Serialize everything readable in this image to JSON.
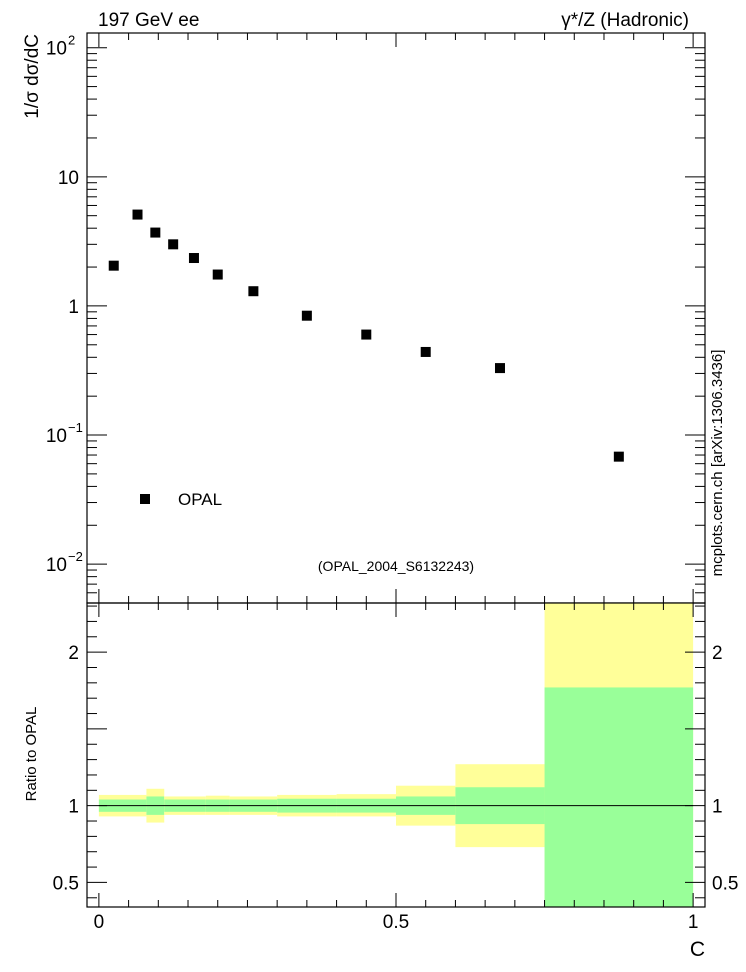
{
  "header": {
    "left": "197 GeV ee",
    "right": "γ*/Z (Hadronic)"
  },
  "watermark": "mcplots.cern.ch [arXiv:1306.3436]",
  "analysis_id": "(OPAL_2004_S6132243)",
  "colors": {
    "band_outer": "#ffff99",
    "band_inner": "#99ff99",
    "marker": "#000000",
    "analysis_text": "#999999"
  },
  "chart_data": [
    {
      "type": "scatter",
      "ylabel": "1/σ dσ/dC",
      "yscale": "log",
      "xlim": [
        -0.02,
        1.02
      ],
      "ylim": [
        0.005,
        130
      ],
      "y_ticks": [
        {
          "value": 0.01,
          "mantissa": "10",
          "exp": "−2"
        },
        {
          "value": 0.1,
          "mantissa": "10",
          "exp": "−1"
        },
        {
          "value": 1,
          "label": "1"
        },
        {
          "value": 10,
          "label": "10"
        },
        {
          "value": 100,
          "mantissa": "10",
          "exp": "2"
        }
      ],
      "legend": {
        "placement": "bottom-left",
        "entries": [
          "OPAL"
        ]
      },
      "series": [
        {
          "name": "OPAL",
          "points": [
            {
              "x": 0.025,
              "y": 2.05
            },
            {
              "x": 0.065,
              "y": 5.1
            },
            {
              "x": 0.095,
              "y": 3.7
            },
            {
              "x": 0.125,
              "y": 3.0
            },
            {
              "x": 0.16,
              "y": 2.35
            },
            {
              "x": 0.2,
              "y": 1.75
            },
            {
              "x": 0.26,
              "y": 1.3
            },
            {
              "x": 0.35,
              "y": 0.84
            },
            {
              "x": 0.45,
              "y": 0.6
            },
            {
              "x": 0.55,
              "y": 0.44
            },
            {
              "x": 0.675,
              "y": 0.33
            },
            {
              "x": 0.875,
              "y": 0.068
            }
          ]
        }
      ]
    },
    {
      "type": "area",
      "xlabel": "C",
      "ylabel": "Ratio to OPAL",
      "xlim": [
        -0.02,
        1.02
      ],
      "ylim": [
        0.34,
        2.32
      ],
      "x_ticks": [
        {
          "value": 0,
          "label": "0"
        },
        {
          "value": 0.5,
          "label": "0.5"
        },
        {
          "value": 1,
          "label": "1"
        }
      ],
      "y_ticks": [
        {
          "value": 0.5,
          "label": "0.5"
        },
        {
          "value": 1,
          "label": "1"
        },
        {
          "value": 2,
          "label": "2"
        }
      ],
      "reference_line": 1,
      "bins": [
        {
          "x0": 0.0,
          "x1": 0.08,
          "inner": [
            0.96,
            1.04
          ],
          "outer": [
            0.93,
            1.07
          ]
        },
        {
          "x0": 0.08,
          "x1": 0.11,
          "inner": [
            0.94,
            1.06
          ],
          "outer": [
            0.89,
            1.11
          ]
        },
        {
          "x0": 0.11,
          "x1": 0.18,
          "inner": [
            0.96,
            1.04
          ],
          "outer": [
            0.94,
            1.06
          ]
        },
        {
          "x0": 0.18,
          "x1": 0.22,
          "inner": [
            0.96,
            1.04
          ],
          "outer": [
            0.94,
            1.065
          ]
        },
        {
          "x0": 0.22,
          "x1": 0.3,
          "inner": [
            0.96,
            1.04
          ],
          "outer": [
            0.94,
            1.06
          ]
        },
        {
          "x0": 0.3,
          "x1": 0.4,
          "inner": [
            0.955,
            1.045
          ],
          "outer": [
            0.93,
            1.07
          ]
        },
        {
          "x0": 0.4,
          "x1": 0.5,
          "inner": [
            0.955,
            1.045
          ],
          "outer": [
            0.93,
            1.075
          ]
        },
        {
          "x0": 0.5,
          "x1": 0.6,
          "inner": [
            0.94,
            1.06
          ],
          "outer": [
            0.87,
            1.13
          ]
        },
        {
          "x0": 0.6,
          "x1": 0.75,
          "inner": [
            0.88,
            1.12
          ],
          "outer": [
            0.73,
            1.27
          ]
        },
        {
          "x0": 0.75,
          "x1": 1.0,
          "inner": [
            0.34,
            1.77
          ],
          "outer": [
            0.34,
            2.32
          ]
        }
      ]
    }
  ]
}
